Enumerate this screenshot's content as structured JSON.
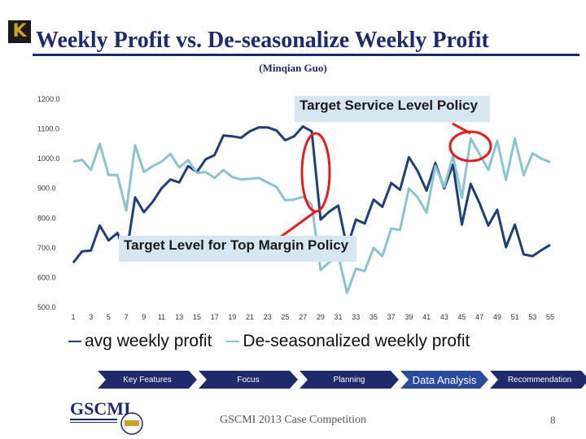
{
  "header": {
    "title": "Weekly Profit vs. De-seasonalize Weekly Profit",
    "subtitle": "(Minqian Guo)"
  },
  "callouts": {
    "service_level": "Target Service Level Policy",
    "top_margin": "Target Level for Top Margin Policy"
  },
  "nav": {
    "items": [
      "Key Features",
      "Focus",
      "Planning",
      "Data Analysis",
      "Recommendation"
    ],
    "active": "Data Analysis"
  },
  "footer": {
    "text": "GSCMI 2013 Case Competition",
    "page": "8"
  },
  "colors": {
    "avg_series": "#1f3e7a",
    "deseason_series": "#8dc3cf",
    "highlight": "#e02020",
    "nav_bg": "#1f2a6b",
    "title": "#1f2a6b"
  },
  "chart_data": {
    "type": "line",
    "title": "",
    "xlabel": "",
    "ylabel": "",
    "ylim": [
      500,
      1200
    ],
    "yticks": [
      "500.0",
      "600.0",
      "700.0",
      "800.0",
      "900.0",
      "1000.0",
      "1100.0",
      "1200.0"
    ],
    "xticks": [
      "1",
      "3",
      "5",
      "7",
      "9",
      "11",
      "13",
      "15",
      "17",
      "19",
      "21",
      "23",
      "25",
      "27",
      "29",
      "31",
      "33",
      "35",
      "37",
      "39",
      "41",
      "43",
      "45",
      "47",
      "49",
      "51",
      "53",
      "55"
    ],
    "x": [
      1,
      2,
      3,
      4,
      5,
      6,
      7,
      8,
      9,
      10,
      11,
      12,
      13,
      14,
      15,
      16,
      17,
      18,
      19,
      20,
      21,
      22,
      23,
      24,
      25,
      26,
      27,
      28,
      29,
      30,
      31,
      32,
      33,
      34,
      35,
      36,
      37,
      38,
      39,
      40,
      41,
      42,
      43,
      44,
      45,
      46,
      47,
      48,
      49,
      50,
      51,
      52,
      53,
      54,
      55
    ],
    "grid": false,
    "legend": "bottom",
    "series": [
      {
        "name": "avg weekly profit",
        "values": [
          650,
          688,
          691,
          775,
          725,
          750,
          675,
          870,
          820,
          855,
          900,
          930,
          920,
          975,
          955,
          998,
          1012,
          1078,
          1075,
          1070,
          1092,
          1105,
          1105,
          1095,
          1062,
          1075,
          1108,
          1092,
          795,
          822,
          842,
          700,
          795,
          782,
          862,
          838,
          918,
          895,
          1005,
          958,
          892,
          985,
          900,
          980,
          778,
          915,
          850,
          775,
          828,
          702,
          778,
          678,
          672,
          692,
          710
        ]
      },
      {
        "name": "De-seasonalized weekly profit",
        "values": [
          990,
          996,
          962,
          1050,
          945,
          945,
          825,
          1045,
          955,
          975,
          990,
          1016,
          970,
          995,
          952,
          955,
          935,
          962,
          938,
          930,
          932,
          935,
          920,
          905,
          860,
          862,
          872,
          845,
          625,
          652,
          675,
          548,
          630,
          622,
          700,
          672,
          765,
          760,
          900,
          870,
          818,
          975,
          905,
          1010,
          868,
          1068,
          1015,
          962,
          1060,
          928,
          1068,
          945,
          1018,
          1000,
          988
        ]
      }
    ]
  }
}
